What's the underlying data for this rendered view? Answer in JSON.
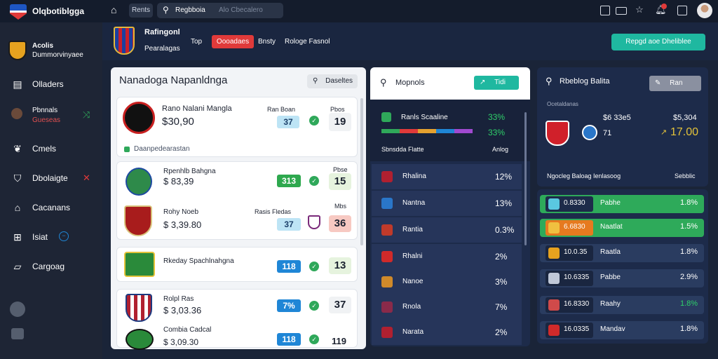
{
  "topbar": {
    "app_title": "Olqbotiblgga",
    "nav_pill": "Rents",
    "search_text": "Regbboia",
    "search_placeholder": "Alo Cbecalero"
  },
  "sidebar": {
    "brand_line1": "Acolis",
    "brand_line2": "Dummorvinyaee",
    "items": [
      {
        "label": "Olladers",
        "icon": "bag-icon"
      },
      {
        "label": "Pbnnals",
        "sublabel": "Gueseas",
        "icon": "person-icon",
        "extra": "shuffle-icon"
      },
      {
        "label": "Cmels",
        "icon": "leaf-icon"
      },
      {
        "label": "Dbolaigte",
        "icon": "shield-icon",
        "extra": "close-icon"
      },
      {
        "label": "Cacanans",
        "icon": "cart-icon"
      },
      {
        "label": "Isiat",
        "icon": "grid-icon",
        "extra": "info-icon"
      },
      {
        "label": "Cargoag",
        "icon": "truck-icon"
      }
    ]
  },
  "header": {
    "title": "Rafingonl",
    "subtitle": "Pearalagas",
    "tag1": "Top",
    "red_button": "Oooadaes",
    "link1": "Bnsty",
    "link2": "Rologe Fasnol",
    "cta_button": "Repgd aoe Dheliblee"
  },
  "left_panel": {
    "title": "Nanadoga Napanldnga",
    "action_button": "Daseltes",
    "matches": [
      {
        "name": "Rano Nalani Mangla",
        "amount": "$30,90",
        "label_a": "Ran Boan",
        "label_b": "Pbos",
        "val_a": "37",
        "val_b": "19",
        "footer": "Daanpedearastan"
      },
      {
        "name": "Rpenhlb Bahgna",
        "amount": "$ 83,39",
        "label_a": "",
        "label_b": "Pbse",
        "val_a": "313",
        "val_b": "15"
      },
      {
        "name": "Rohy Noeb",
        "amount": "$ 3,39.80",
        "label_a": "Rasis Fledas",
        "label_b": "Mbs",
        "val_a": "37",
        "val_b": "36"
      },
      {
        "name": "Rkeday Spachlnahgna",
        "amount": "",
        "label_a": "",
        "label_b": "",
        "val_a": "118",
        "val_b": "13"
      },
      {
        "name": "Rolpl Ras",
        "amount": "$ 3,03.36",
        "label_a": "",
        "label_b": "",
        "val_a": "7%",
        "val_b": "37"
      },
      {
        "name": "Combia Cadcal",
        "amount": "$ 3,09.30",
        "label_a": "",
        "label_b": "",
        "val_a": "118",
        "val_b": "119"
      }
    ]
  },
  "mid_panel": {
    "title": "Mopnols",
    "action_button": "Tidi",
    "summary": {
      "label": "Ranls Scaaline",
      "pct1": "33%",
      "pct2": "33%",
      "foot_left": "Sbnsdda Flatte",
      "foot_right": "Anlog"
    },
    "rows": [
      {
        "label": "Rhalina",
        "value": "12%"
      },
      {
        "label": "Nantna",
        "value": "13%"
      },
      {
        "label": "Rantia",
        "value": "0.3%"
      },
      {
        "label": "Rhalni",
        "value": "2%"
      },
      {
        "label": "Nanoe",
        "value": "3%"
      },
      {
        "label": "Rnola",
        "value": "7%"
      },
      {
        "label": "Narata",
        "value": "2%"
      }
    ]
  },
  "right_panel": {
    "title": "Rbeblog Balita",
    "action_button": "Ran",
    "sub_label": "Ocetaldanas",
    "top": {
      "left_code": "$6 33e5",
      "right_val": "$5,304",
      "left_num": "71",
      "right_num": "17.00"
    },
    "footer": {
      "left": "Ngocleg Baloag Ienlasoog",
      "right": "Sebblic"
    },
    "rows": [
      {
        "code": "0.8330",
        "label": "Pabhe",
        "value": "1.8%",
        "highlight": "#2eaa5a"
      },
      {
        "code": "6.6830",
        "label": "Naatlat",
        "value": "1.5%",
        "highlight": "#2eaa5a"
      },
      {
        "code": "10.0.35",
        "label": "Raatla",
        "value": "1.8%",
        "highlight": ""
      },
      {
        "code": "10.6335",
        "label": "Pabbe",
        "value": "2.9%",
        "highlight": ""
      },
      {
        "code": "16.8330",
        "label": "Raahy",
        "value": "1.8%",
        "highlight": ""
      },
      {
        "code": "16.0335",
        "label": "Mandav",
        "value": "1.8%",
        "highlight": ""
      }
    ]
  },
  "colors": {
    "accent": "#1fb8a0",
    "red": "#e03a3a",
    "green": "#2fa85a",
    "blue": "#1f86d6",
    "dark_bg": "#1a2438"
  }
}
